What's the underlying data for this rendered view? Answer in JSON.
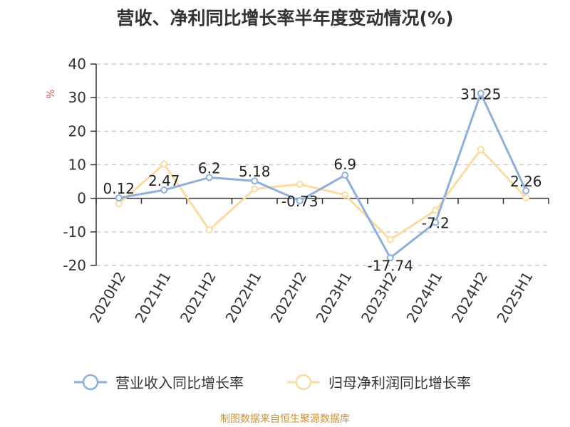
{
  "chart_data": {
    "type": "line",
    "title": "营收、净利同比增长率半年度变动情况(%)",
    "ylabel": "%",
    "xlabel": "",
    "ylim": [
      -20,
      40
    ],
    "yticks": [
      40,
      30,
      20,
      10,
      0,
      -10,
      -20
    ],
    "grid": true,
    "legend_position": "bottom",
    "categories": [
      "2020H2",
      "2021H1",
      "2021H2",
      "2022H1",
      "2022H2",
      "2023H1",
      "2023H2",
      "2024H1",
      "2024H2",
      "2025H1"
    ],
    "series": [
      {
        "name": "营业收入同比增长率",
        "color": "#8eaede",
        "values": [
          0.12,
          2.47,
          6.2,
          5.18,
          -0.73,
          6.9,
          -17.74,
          -7.2,
          31.25,
          2.26
        ],
        "labels": [
          "0.12",
          "2.47",
          "6.2",
          "5.18",
          "-0.73",
          "6.9",
          "-17.74",
          "-7.2",
          "31.25",
          "2.26"
        ]
      },
      {
        "name": "归母净利润同比增长率",
        "color": "#fbdba0",
        "values": [
          -1.6,
          10.2,
          -9.4,
          2.8,
          4.2,
          1.0,
          -12.3,
          -3.6,
          14.5,
          0.2
        ]
      }
    ]
  },
  "footer": {
    "source": "制图数据来自恒生聚源数据库"
  }
}
